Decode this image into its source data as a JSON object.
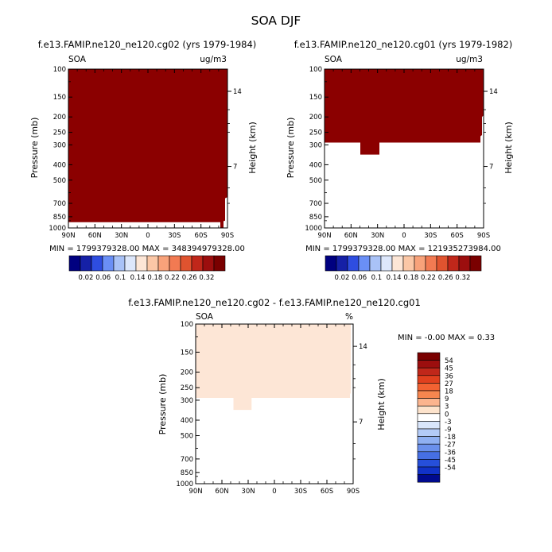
{
  "figure": {
    "title": "SOA DJF"
  },
  "chart_data": [
    {
      "type": "heatmap",
      "title": "f.e13.FAMIP.ne120_ne120.cg02 (yrs 1979-1984)",
      "variable": "SOA",
      "units": "ug/m3",
      "ylabel": "Pressure (mb)",
      "y2label": "Height (km)",
      "x_ticks": [
        "90N",
        "60N",
        "30N",
        "0",
        "30S",
        "60S",
        "90S"
      ],
      "y_ticks": [
        100,
        150,
        200,
        250,
        300,
        400,
        500,
        700,
        850,
        1000
      ],
      "y2_ticks": [
        "14",
        "7"
      ],
      "ylim": [
        1000,
        100
      ],
      "stats_text": "MIN = 1799379328.00   MAX = 348394979328.00",
      "shading": "saturated above top contour (0.32) over almost the whole domain",
      "colorbar_labels": [
        "0.02",
        "0.06",
        "0.1",
        "0.14",
        "0.18",
        "0.22",
        "0.26",
        "0.32"
      ]
    },
    {
      "type": "heatmap",
      "title": "f.e13.FAMIP.ne120_ne120.cg01 (yrs 1979-1982)",
      "variable": "SOA",
      "units": "ug/m3",
      "ylabel": "Pressure (mb)",
      "y2label": "Height (km)",
      "x_ticks": [
        "90N",
        "60N",
        "30N",
        "0",
        "30S",
        "60S",
        "90S"
      ],
      "y_ticks": [
        100,
        150,
        200,
        250,
        300,
        400,
        500,
        700,
        850,
        1000
      ],
      "y2_ticks": [
        "14",
        "7"
      ],
      "ylim": [
        1000,
        100
      ],
      "stats_text": "MIN = 1799379328.00   MAX = 121935273984.00",
      "shading": "saturated above 0.32 from 100 mb down to about 300 mb; below is blank",
      "colorbar_labels": [
        "0.02",
        "0.06",
        "0.1",
        "0.14",
        "0.18",
        "0.22",
        "0.26",
        "0.32"
      ]
    },
    {
      "type": "heatmap",
      "title": "f.e13.FAMIP.ne120_ne120.cg02 - f.e13.FAMIP.ne120_ne120.cg01",
      "variable": "SOA",
      "units": "%",
      "ylabel": "Pressure (mb)",
      "y2label": "Height (km)",
      "x_ticks": [
        "90N",
        "60N",
        "30N",
        "0",
        "30S",
        "60S",
        "90S"
      ],
      "y_ticks": [
        100,
        150,
        200,
        250,
        300,
        400,
        500,
        700,
        850,
        1000
      ],
      "y2_ticks": [
        "14",
        "7"
      ],
      "ylim": [
        1000,
        100
      ],
      "stats_text": "MIN =   -0.00  MAX =    0.33",
      "shading": "0 to 3 % above about 300 mb; below is blank",
      "colorbar_labels": [
        "54",
        "45",
        "36",
        "27",
        "18",
        "9",
        "3",
        "0",
        "-3",
        "-9",
        "-18",
        "-27",
        "-36",
        "-45",
        "-54"
      ]
    }
  ],
  "colors": {
    "sat_red": "#8b0000",
    "diff_fill": "#fde6d6",
    "abs_bar": [
      "#000080",
      "#1520a6",
      "#2e4de0",
      "#6a8ff6",
      "#a9c2f7",
      "#dde7fb",
      "#fde6d6",
      "#fbc7a6",
      "#f8a27a",
      "#f27a52",
      "#e0532f",
      "#c0271a",
      "#9c0e0e",
      "#7a0000"
    ],
    "diff_bar": [
      "#7a0000",
      "#9c0e0e",
      "#c0271a",
      "#e0401e",
      "#f26232",
      "#f7864f",
      "#fbb48e",
      "#fde3cc",
      "#ffffff",
      "#d9e6fb",
      "#b3cbf7",
      "#8fb0f2",
      "#6a90ec",
      "#466fe4",
      "#264fda",
      "#1132c8",
      "#000a8f"
    ]
  }
}
